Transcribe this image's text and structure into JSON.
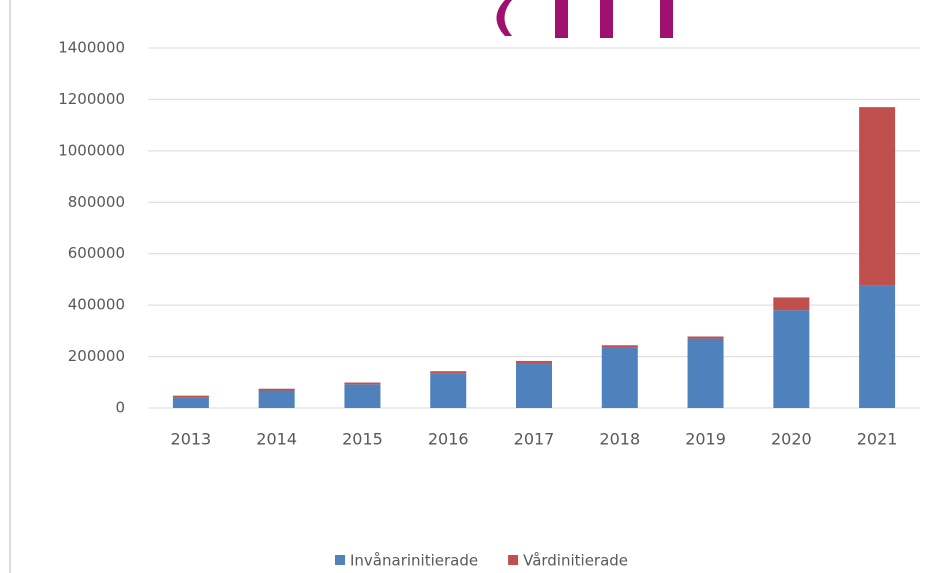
{
  "chart_data": {
    "type": "stacked_bar",
    "categories": [
      "2013",
      "2014",
      "2015",
      "2016",
      "2017",
      "2018",
      "2019",
      "2020",
      "2021"
    ],
    "series": [
      {
        "name": "Invånarinitierade",
        "color": "#4f81bd",
        "values": [
          40000,
          68000,
          92000,
          135000,
          175000,
          237000,
          270000,
          380000,
          475000
        ]
      },
      {
        "name": "Vårdinitierade",
        "color": "#c0504d",
        "values": [
          8000,
          7000,
          7000,
          8000,
          8000,
          7000,
          8000,
          50000,
          695000
        ]
      }
    ],
    "ylim": [
      0,
      1400000
    ],
    "yticks": [
      0,
      200000,
      400000,
      600000,
      800000,
      1000000,
      1200000,
      1400000
    ],
    "grid": true,
    "legend": "bottom"
  }
}
